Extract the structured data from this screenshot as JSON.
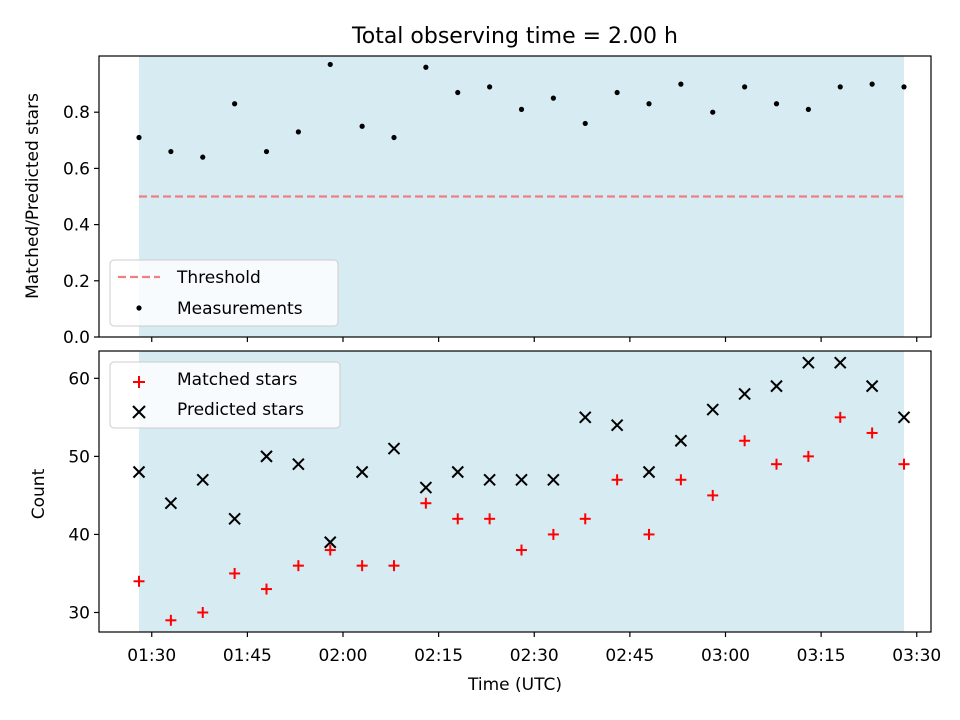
{
  "chart_data": [
    {
      "type": "scatter",
      "title": "Total observing time = 2.00 h",
      "xlabel": "",
      "ylabel": "Matched/Predicted stars",
      "ylim": [
        0.0,
        1.0
      ],
      "yticks": [
        "0.0",
        "0.2",
        "0.4",
        "0.6",
        "0.8"
      ],
      "x": [
        "01:28",
        "01:33",
        "01:38",
        "01:43",
        "01:48",
        "01:53",
        "01:58",
        "02:03",
        "02:08",
        "02:13",
        "02:18",
        "02:23",
        "02:28",
        "02:33",
        "02:38",
        "02:43",
        "02:48",
        "02:53",
        "02:58",
        "03:03",
        "03:08",
        "03:13",
        "03:18",
        "03:23",
        "03:28"
      ],
      "series": [
        {
          "name": "Measurements",
          "color": "#000000",
          "marker": "dot",
          "values": [
            0.71,
            0.66,
            0.64,
            0.83,
            0.66,
            0.73,
            0.97,
            0.75,
            0.71,
            0.96,
            0.87,
            0.89,
            0.81,
            0.85,
            0.76,
            0.87,
            0.83,
            0.9,
            0.8,
            0.89,
            0.83,
            0.81,
            0.89,
            0.9,
            0.89
          ]
        },
        {
          "name": "Threshold",
          "color": "#f08080",
          "style": "dashed",
          "values": [
            0.5,
            0.5
          ]
        }
      ],
      "legend": "lower-left",
      "shaded_span": [
        "01:28",
        "03:28"
      ],
      "shade_color": "#add8e6"
    },
    {
      "type": "scatter",
      "xlabel": "Time (UTC)",
      "ylabel": "Count",
      "ylim": [
        27.5,
        63.5
      ],
      "yticks": [
        "30",
        "40",
        "50",
        "60"
      ],
      "xticks": [
        "01:30",
        "01:45",
        "02:00",
        "02:15",
        "02:30",
        "02:45",
        "03:00",
        "03:15",
        "03:30"
      ],
      "x": [
        "01:28",
        "01:33",
        "01:38",
        "01:43",
        "01:48",
        "01:53",
        "01:58",
        "02:03",
        "02:08",
        "02:13",
        "02:18",
        "02:23",
        "02:28",
        "02:33",
        "02:38",
        "02:43",
        "02:48",
        "02:53",
        "02:58",
        "03:03",
        "03:08",
        "03:13",
        "03:18",
        "03:23",
        "03:28"
      ],
      "series": [
        {
          "name": "Matched stars",
          "color": "#ff0000",
          "marker": "plus",
          "values": [
            34,
            29,
            30,
            35,
            33,
            36,
            38,
            36,
            36,
            44,
            42,
            42,
            38,
            40,
            42,
            47,
            40,
            47,
            45,
            52,
            49,
            50,
            55,
            53,
            49
          ]
        },
        {
          "name": "Predicted stars",
          "color": "#000000",
          "marker": "x",
          "values": [
            48,
            44,
            47,
            42,
            50,
            49,
            39,
            48,
            51,
            46,
            48,
            47,
            47,
            47,
            55,
            54,
            48,
            52,
            56,
            58,
            59,
            62,
            62,
            59,
            55
          ]
        }
      ],
      "legend": "top-left",
      "shaded_span": [
        "01:28",
        "03:28"
      ],
      "shade_color": "#add8e6"
    }
  ]
}
